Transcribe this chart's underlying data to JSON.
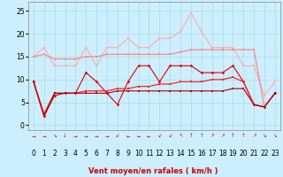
{
  "x": [
    0,
    1,
    2,
    3,
    4,
    5,
    6,
    7,
    8,
    9,
    10,
    11,
    12,
    13,
    14,
    15,
    16,
    17,
    18,
    19,
    20,
    21,
    22,
    23
  ],
  "background_color": "#cceeff",
  "grid_color": "#aadddd",
  "xlabel": "Vent moyen/en rafales ( km/h )",
  "ylabel_ticks": [
    0,
    5,
    10,
    15,
    20,
    25
  ],
  "xlim": [
    -0.5,
    23.5
  ],
  "ylim": [
    -1,
    27
  ],
  "line1_color": "#ffaaaa",
  "line2_color": "#ff8888",
  "line3_color": "#dd0000",
  "line4_color": "#ff2222",
  "line5_color": "#aa0000",
  "line1_values": [
    15.0,
    17.0,
    13.0,
    13.0,
    13.0,
    17.0,
    13.0,
    17.0,
    17.0,
    19.0,
    17.0,
    17.0,
    19.0,
    19.0,
    20.5,
    24.5,
    20.5,
    17.0,
    17.0,
    17.0,
    13.0,
    13.0,
    6.5,
    9.5
  ],
  "line2_values": [
    15.0,
    15.5,
    14.5,
    14.5,
    14.5,
    15.0,
    15.0,
    15.5,
    15.5,
    15.5,
    15.5,
    15.5,
    15.5,
    15.5,
    16.0,
    16.5,
    16.5,
    16.5,
    16.5,
    16.5,
    16.5,
    16.5,
    4.0,
    null
  ],
  "line3_values": [
    9.5,
    2.0,
    6.5,
    7.0,
    7.0,
    11.5,
    9.5,
    7.0,
    4.5,
    9.5,
    13.0,
    13.0,
    9.5,
    13.0,
    13.0,
    13.0,
    11.5,
    11.5,
    11.5,
    13.0,
    9.5,
    4.5,
    4.0,
    7.0
  ],
  "line4_values": [
    9.5,
    2.5,
    7.0,
    7.0,
    7.0,
    7.5,
    7.5,
    7.5,
    8.0,
    8.0,
    8.5,
    8.5,
    9.0,
    9.0,
    9.5,
    9.5,
    9.5,
    10.0,
    10.0,
    10.5,
    9.5,
    4.5,
    4.0,
    7.0
  ],
  "line5_values": [
    9.5,
    2.0,
    7.0,
    7.0,
    7.0,
    7.0,
    7.0,
    7.0,
    7.5,
    7.5,
    7.5,
    7.5,
    7.5,
    7.5,
    7.5,
    7.5,
    7.5,
    7.5,
    7.5,
    8.0,
    8.0,
    4.5,
    4.0,
    7.0
  ],
  "arrow_symbols": [
    "→",
    "→",
    "↘",
    "↓",
    "→",
    "→",
    "→",
    "→",
    "↙",
    "←",
    "←",
    "←",
    "↙",
    "↙",
    "↖",
    "↑",
    "↑",
    "↗",
    "↗",
    "↑",
    "↑",
    "↗",
    "↘",
    "↘"
  ],
  "axis_fontsize": 6,
  "tick_fontsize": 5.5
}
